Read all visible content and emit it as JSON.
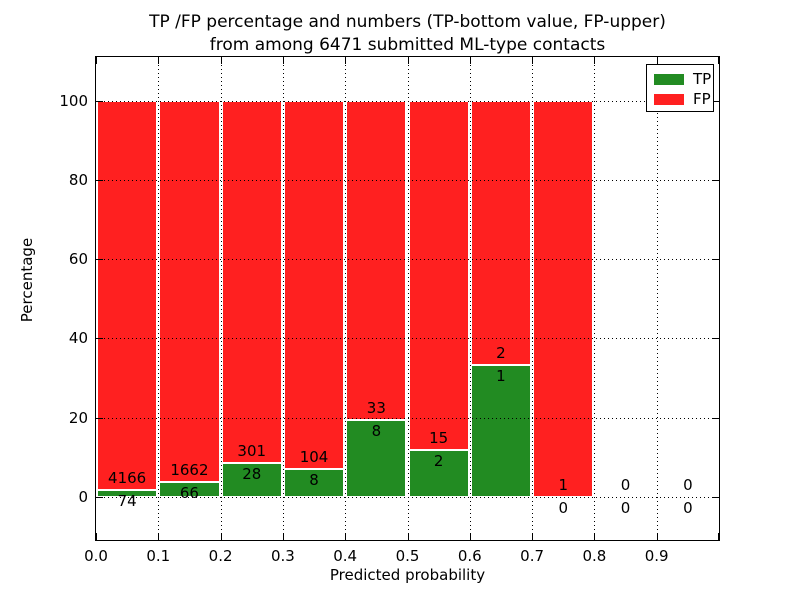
{
  "figure": {
    "title_line1": "TP /FP percentage and numbers (TP-bottom value, FP-upper)",
    "title_line2": "from among 6471 submitted ML-type contacts"
  },
  "legend": {
    "position": "upper right",
    "items": [
      {
        "label": "TP",
        "color": "#228B22"
      },
      {
        "label": "FP",
        "color": "#FF2020"
      }
    ]
  },
  "chart_data": {
    "type": "bar",
    "stacked": true,
    "normalized": "each bin scaled to 100%",
    "title": "TP /FP percentage and numbers (TP-bottom value, FP-upper) from among 6471 submitted ML-type contacts",
    "xlabel": "Predicted probability",
    "ylabel": "Percentage",
    "xlim": [
      0.0,
      1.0
    ],
    "ylim": [
      -11,
      111
    ],
    "yticks": [
      0,
      20,
      40,
      60,
      80,
      100
    ],
    "xtick_labels": [
      "0.0",
      "0.1",
      "0.2",
      "0.3",
      "0.4",
      "0.5",
      "0.6",
      "0.7",
      "0.8",
      "0.9"
    ],
    "grid": "dotted",
    "total_contacts": 6471,
    "colors": {
      "tp": "#228B22",
      "fp": "#FF2020"
    },
    "series": [
      {
        "name": "TP",
        "color": "#228B22",
        "counts": [
          74,
          66,
          28,
          8,
          8,
          2,
          1,
          0,
          0,
          0
        ]
      },
      {
        "name": "FP",
        "color": "#FF2020",
        "counts": [
          4166,
          1662,
          301,
          104,
          33,
          15,
          2,
          1,
          0,
          0
        ]
      }
    ],
    "bins": [
      {
        "range": [
          0.0,
          0.1
        ],
        "tp": 74,
        "fp": 4166
      },
      {
        "range": [
          0.1,
          0.2
        ],
        "tp": 66,
        "fp": 1662
      },
      {
        "range": [
          0.2,
          0.3
        ],
        "tp": 28,
        "fp": 301
      },
      {
        "range": [
          0.3,
          0.4
        ],
        "tp": 8,
        "fp": 104
      },
      {
        "range": [
          0.4,
          0.5
        ],
        "tp": 8,
        "fp": 33
      },
      {
        "range": [
          0.5,
          0.6
        ],
        "tp": 2,
        "fp": 15
      },
      {
        "range": [
          0.6,
          0.7
        ],
        "tp": 1,
        "fp": 2
      },
      {
        "range": [
          0.7,
          0.8
        ],
        "tp": 0,
        "fp": 1
      },
      {
        "range": [
          0.8,
          0.9
        ],
        "tp": 0,
        "fp": 0
      },
      {
        "range": [
          0.9,
          1.0
        ],
        "tp": 0,
        "fp": 0
      }
    ]
  }
}
